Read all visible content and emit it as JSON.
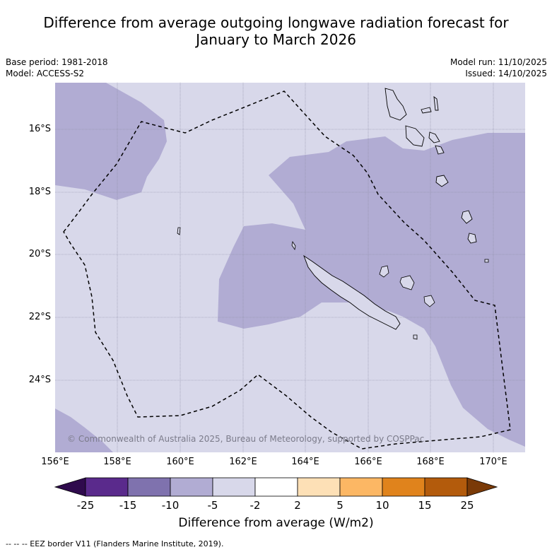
{
  "title_line1": "Difference from average outgoing longwave radiation forecast for",
  "title_line2": "January to March 2026",
  "meta": {
    "base_period": "Base period: 1981-2018",
    "model": "Model: ACCESS-S2",
    "model_run": "Model run: 11/10/2025",
    "issued": "Issued: 14/10/2025"
  },
  "map": {
    "lat_ticks": [
      "16°S",
      "18°S",
      "20°S",
      "22°S",
      "24°S"
    ],
    "lon_ticks": [
      "156°E",
      "158°E",
      "160°E",
      "162°E",
      "164°E",
      "166°E",
      "168°E",
      "170°E"
    ],
    "copyright": "© Commonwealth of Australia 2025, Bureau of Meteorology, supported by COSPPac",
    "colors": {
      "ocean_band": "#d8d8ea",
      "neg_band": "#b1acd3"
    }
  },
  "colorbar": {
    "labels": [
      "-25",
      "-15",
      "-10",
      "-5",
      "-2",
      "2",
      "5",
      "10",
      "15",
      "25"
    ],
    "colors": [
      "#2f0a4d",
      "#5a2a8c",
      "#7f72ae",
      "#b1acd3",
      "#d8d8ea",
      "#ffffff",
      "#fde0b6",
      "#fcb764",
      "#e0831c",
      "#b35b0c",
      "#7a3a07"
    ],
    "title": "Difference from average (W/m2)"
  },
  "legend": "--  --  -- EEZ border V11 (Flanders Marine Institute, 2019)."
}
